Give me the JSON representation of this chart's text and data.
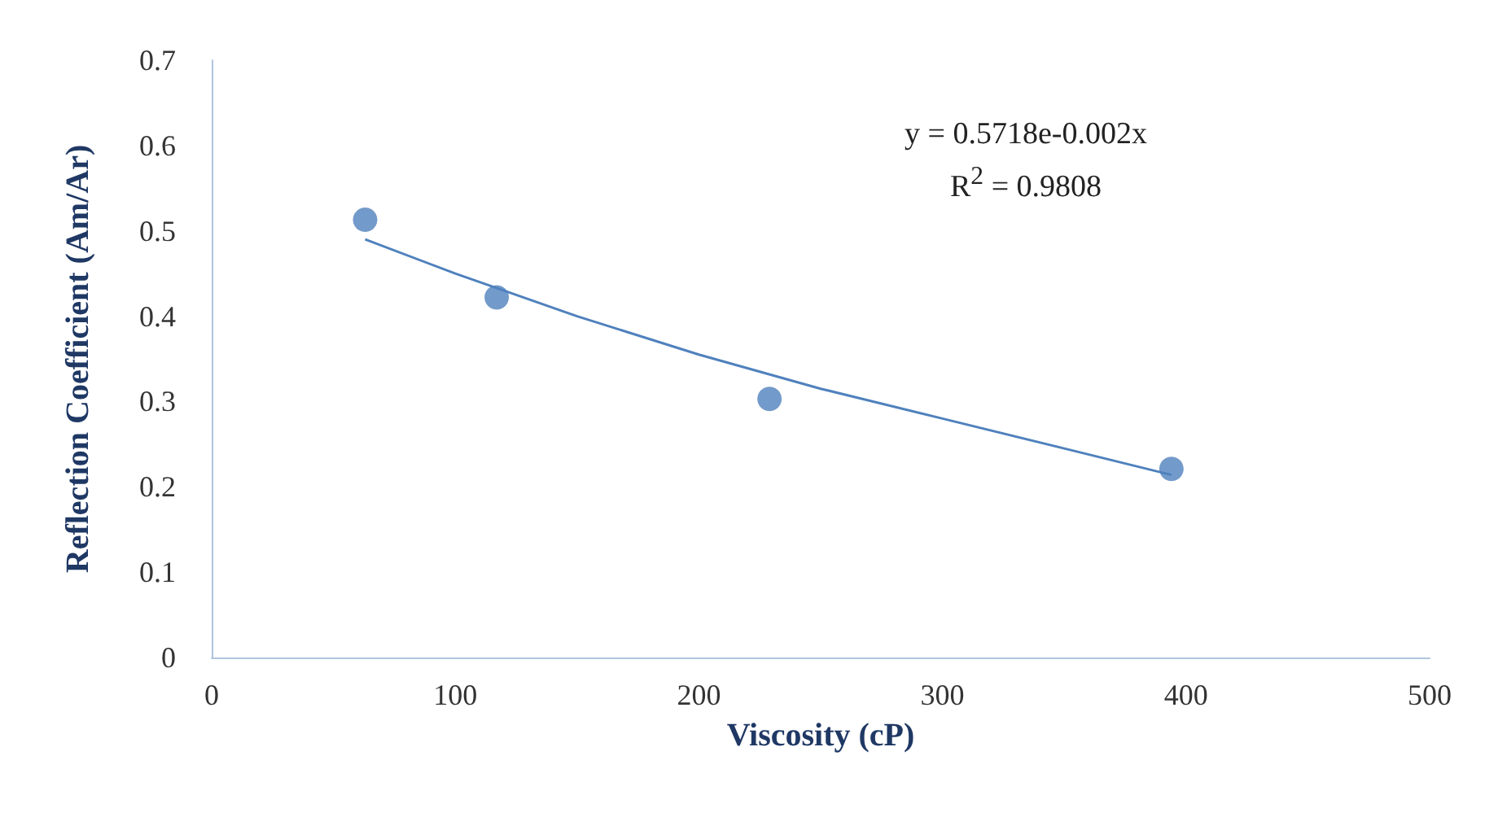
{
  "chart_data": {
    "type": "scatter",
    "xlabel": "Viscosity (cP)",
    "ylabel": "Reflection Coefficient (Am/Ar)",
    "xlim": [
      0,
      500
    ],
    "xticks": [
      0,
      100,
      200,
      300,
      400,
      500
    ],
    "ylim": [
      0,
      0.7
    ],
    "yticks": [
      0,
      0.1,
      0.2,
      0.3,
      0.4,
      0.5,
      0.6,
      0.7
    ],
    "grid": false,
    "marker": "circle",
    "series": [
      {
        "color": "#4f81bd",
        "x": [
          63,
          117,
          229,
          394
        ],
        "values": [
          0.513,
          0.422,
          0.303,
          0.221
        ]
      },
      {
        "type": "line",
        "color": "#4f81bd",
        "marker": "none",
        "x": [
          63,
          100,
          150,
          200,
          250,
          300,
          350,
          394
        ],
        "values": [
          0.49,
          0.45,
          0.4,
          0.355,
          0.315,
          0.28,
          0.245,
          0.214
        ]
      }
    ],
    "annotations": [
      "y = 0.5718e-0.002x",
      "R$^{2}$ = 0.9808"
    ]
  }
}
